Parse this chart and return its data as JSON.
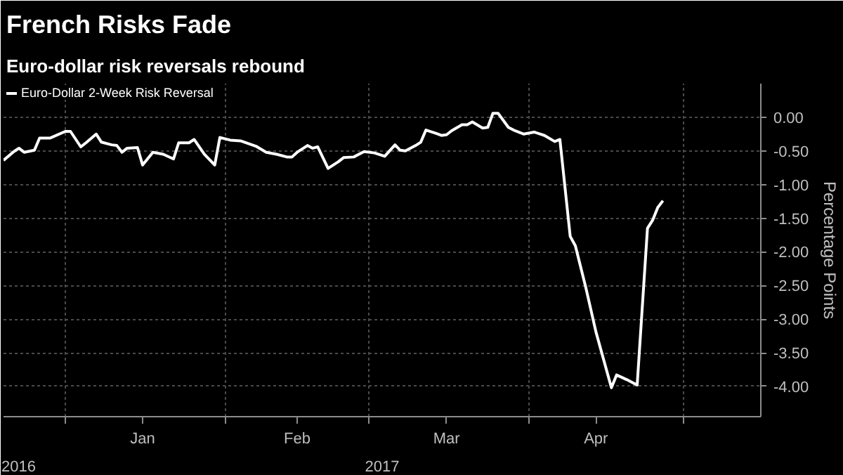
{
  "chart_data": {
    "type": "line",
    "title": "French Risks Fade",
    "subtitle": "Euro-dollar risk reversals rebound",
    "ylabel": "Percentage Points",
    "annotations": [
      "2016",
      "2017"
    ],
    "xlim": [
      "2016-12-20",
      "2017-05-16"
    ],
    "xticks": [
      {
        "value": "2017-01-01",
        "label": null
      },
      {
        "value": "2017-01-16",
        "label": "Jan"
      },
      {
        "value": "2017-02-01",
        "label": null
      },
      {
        "value": "2017-02-15",
        "label": "Feb"
      },
      {
        "value": "2017-03-01",
        "label": null
      },
      {
        "value": "2017-03-16",
        "label": "Mar"
      },
      {
        "value": "2017-04-01",
        "label": null
      },
      {
        "value": "2017-04-14",
        "label": "Apr"
      },
      {
        "value": "2017-05-01",
        "label": null
      }
    ],
    "ylim": [
      -4.45,
      0.5
    ],
    "yticks": [
      {
        "value": 0,
        "label": "0.00"
      },
      {
        "value": -0.5,
        "label": "-0.50"
      },
      {
        "value": -1,
        "label": "-1.00"
      },
      {
        "value": -1.5,
        "label": "-1.50"
      },
      {
        "value": -2,
        "label": "-2.00"
      },
      {
        "value": -2.5,
        "label": "-2.50"
      },
      {
        "value": -3,
        "label": "-3.00"
      },
      {
        "value": -3.5,
        "label": "-3.50"
      },
      {
        "value": -4,
        "label": "-4.00"
      }
    ],
    "grid": true,
    "legend": "top left",
    "line_style": "solid",
    "series": [
      {
        "name": "Euro-Dollar 2-Week Risk Reversal",
        "color": "#ffffff",
        "x": [
          "2016-12-20",
          "2016-12-22",
          "2016-12-23",
          "2016-12-24",
          "2016-12-26",
          "2016-12-27",
          "2016-12-29",
          "2017-01-01",
          "2017-01-02",
          "2017-01-04",
          "2017-01-05",
          "2017-01-07",
          "2017-01-08",
          "2017-01-10",
          "2017-01-11",
          "2017-01-12",
          "2017-01-13",
          "2017-01-15",
          "2017-01-16",
          "2017-01-18",
          "2017-01-20",
          "2017-01-22",
          "2017-01-23",
          "2017-01-25",
          "2017-01-26",
          "2017-01-28",
          "2017-01-30",
          "2017-01-31",
          "2017-02-02",
          "2017-02-04",
          "2017-02-07",
          "2017-02-09",
          "2017-02-11",
          "2017-02-13",
          "2017-02-14",
          "2017-02-15",
          "2017-02-17",
          "2017-02-18",
          "2017-02-19",
          "2017-02-21",
          "2017-02-23",
          "2017-02-24",
          "2017-02-26",
          "2017-02-28",
          "2017-03-02",
          "2017-03-04",
          "2017-03-06",
          "2017-03-07",
          "2017-03-08",
          "2017-03-10",
          "2017-03-11",
          "2017-03-12",
          "2017-03-14",
          "2017-03-15",
          "2017-03-16",
          "2017-03-17",
          "2017-03-19",
          "2017-03-20",
          "2017-03-21",
          "2017-03-23",
          "2017-03-24",
          "2017-03-25",
          "2017-03-26",
          "2017-03-28",
          "2017-03-29",
          "2017-03-31",
          "2017-04-02",
          "2017-04-04",
          "2017-04-06",
          "2017-04-07",
          "2017-04-09",
          "2017-04-10",
          "2017-04-12",
          "2017-04-14",
          "2017-04-17",
          "2017-04-18",
          "2017-04-20",
          "2017-04-22",
          "2017-04-24",
          "2017-04-25",
          "2017-04-26",
          "2017-04-27"
        ],
        "values": [
          -0.64,
          -0.51,
          -0.46,
          -0.52,
          -0.49,
          -0.31,
          -0.31,
          -0.21,
          -0.21,
          -0.44,
          -0.38,
          -0.25,
          -0.37,
          -0.41,
          -0.42,
          -0.52,
          -0.46,
          -0.45,
          -0.71,
          -0.52,
          -0.55,
          -0.62,
          -0.38,
          -0.38,
          -0.33,
          -0.55,
          -0.71,
          -0.3,
          -0.34,
          -0.35,
          -0.43,
          -0.52,
          -0.55,
          -0.59,
          -0.59,
          -0.52,
          -0.42,
          -0.46,
          -0.44,
          -0.76,
          -0.66,
          -0.6,
          -0.59,
          -0.51,
          -0.53,
          -0.58,
          -0.41,
          -0.49,
          -0.5,
          -0.42,
          -0.37,
          -0.19,
          -0.24,
          -0.27,
          -0.26,
          -0.2,
          -0.11,
          -0.11,
          -0.07,
          -0.16,
          -0.15,
          0.06,
          0.06,
          -0.15,
          -0.19,
          -0.25,
          -0.22,
          -0.27,
          -0.36,
          -0.33,
          -1.77,
          -1.91,
          -2.52,
          -3.19,
          -4.02,
          -3.83,
          -3.9,
          -3.98,
          -1.65,
          -1.53,
          -1.34,
          -1.24
        ]
      }
    ]
  }
}
